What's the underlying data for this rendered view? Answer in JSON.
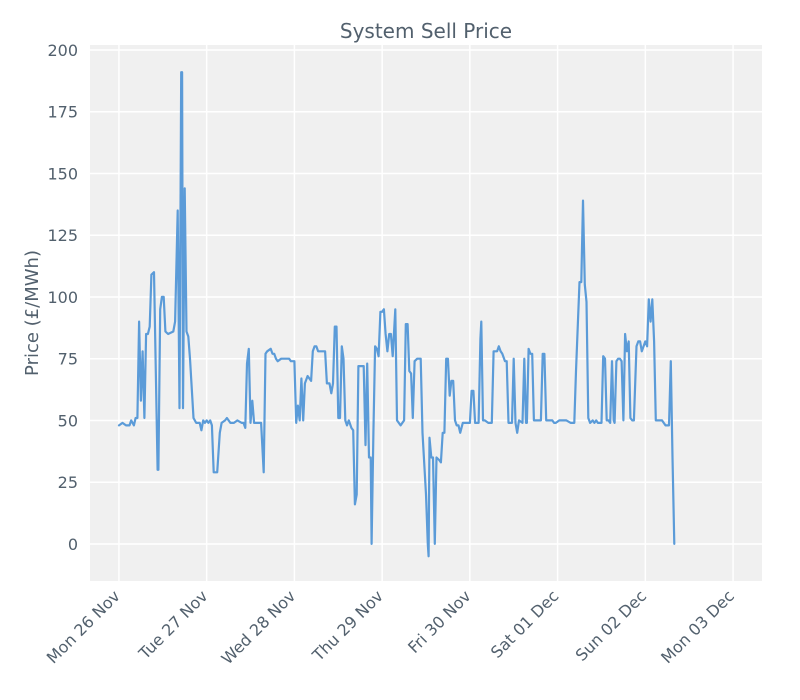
{
  "chart_data": {
    "type": "line",
    "title": "System Sell Price",
    "xlabel": "",
    "ylabel": "Price (£/MWh)",
    "ylim": [
      -15,
      202
    ],
    "xlim": [
      -0.33,
      7.33
    ],
    "yticks": [
      0,
      25,
      50,
      75,
      100,
      125,
      150,
      175,
      200
    ],
    "xticks": [
      "Mon 26 Nov",
      "Tue 27 Nov",
      "Wed 28 Nov",
      "Thu 29 Nov",
      "Fri 30 Nov",
      "Sat 01 Dec",
      "Sun 02 Dec",
      "Mon 03 Dec"
    ],
    "grid": true,
    "x_unit": "days since Mon 26 Nov 00:00 (30-minute settlement periods)",
    "series": [
      {
        "name": "System Sell Price",
        "color": "#5b9bd8",
        "points": [
          [
            0.0,
            48
          ],
          [
            0.04,
            49
          ],
          [
            0.08,
            48
          ],
          [
            0.12,
            48
          ],
          [
            0.14,
            50
          ],
          [
            0.17,
            48
          ],
          [
            0.19,
            51
          ],
          [
            0.21,
            51
          ],
          [
            0.23,
            90
          ],
          [
            0.25,
            58
          ],
          [
            0.27,
            78
          ],
          [
            0.29,
            51
          ],
          [
            0.31,
            85
          ],
          [
            0.33,
            85
          ],
          [
            0.35,
            88
          ],
          [
            0.37,
            109
          ],
          [
            0.4,
            110
          ],
          [
            0.42,
            70
          ],
          [
            0.44,
            30
          ],
          [
            0.45,
            30
          ],
          [
            0.47,
            95
          ],
          [
            0.49,
            100
          ],
          [
            0.51,
            100
          ],
          [
            0.53,
            86
          ],
          [
            0.56,
            85
          ],
          [
            0.62,
            86
          ],
          [
            0.64,
            90
          ],
          [
            0.67,
            135
          ],
          [
            0.69,
            55
          ],
          [
            0.71,
            191
          ],
          [
            0.72,
            191
          ],
          [
            0.73,
            55
          ],
          [
            0.75,
            144
          ],
          [
            0.77,
            86
          ],
          [
            0.79,
            84
          ],
          [
            0.81,
            75
          ],
          [
            0.85,
            51
          ],
          [
            0.88,
            49
          ],
          [
            0.92,
            49
          ],
          [
            0.94,
            46
          ],
          [
            0.96,
            50
          ],
          [
            0.98,
            49
          ],
          [
            1.0,
            50
          ],
          [
            1.02,
            49
          ],
          [
            1.04,
            50
          ],
          [
            1.06,
            48
          ],
          [
            1.08,
            29
          ],
          [
            1.12,
            29
          ],
          [
            1.15,
            45
          ],
          [
            1.17,
            49
          ],
          [
            1.21,
            50
          ],
          [
            1.23,
            51
          ],
          [
            1.27,
            49
          ],
          [
            1.31,
            49
          ],
          [
            1.35,
            50
          ],
          [
            1.4,
            49
          ],
          [
            1.42,
            49
          ],
          [
            1.44,
            47
          ],
          [
            1.46,
            73
          ],
          [
            1.48,
            79
          ],
          [
            1.5,
            49
          ],
          [
            1.52,
            58
          ],
          [
            1.54,
            49
          ],
          [
            1.56,
            49
          ],
          [
            1.58,
            49
          ],
          [
            1.6,
            49
          ],
          [
            1.62,
            49
          ],
          [
            1.65,
            29
          ],
          [
            1.67,
            77
          ],
          [
            1.69,
            78
          ],
          [
            1.73,
            79
          ],
          [
            1.75,
            77
          ],
          [
            1.77,
            77
          ],
          [
            1.79,
            75
          ],
          [
            1.81,
            74
          ],
          [
            1.85,
            75
          ],
          [
            1.94,
            75
          ],
          [
            1.96,
            74
          ],
          [
            2.0,
            74
          ],
          [
            2.02,
            49
          ],
          [
            2.04,
            56
          ],
          [
            2.06,
            50
          ],
          [
            2.08,
            67
          ],
          [
            2.1,
            50
          ],
          [
            2.12,
            65
          ],
          [
            2.15,
            68
          ],
          [
            2.19,
            66
          ],
          [
            2.21,
            78
          ],
          [
            2.23,
            80
          ],
          [
            2.25,
            80
          ],
          [
            2.27,
            78
          ],
          [
            2.31,
            78
          ],
          [
            2.35,
            78
          ],
          [
            2.37,
            65
          ],
          [
            2.4,
            65
          ],
          [
            2.42,
            61
          ],
          [
            2.44,
            65
          ],
          [
            2.46,
            88
          ],
          [
            2.48,
            88
          ],
          [
            2.5,
            51
          ],
          [
            2.52,
            51
          ],
          [
            2.54,
            80
          ],
          [
            2.56,
            75
          ],
          [
            2.58,
            50
          ],
          [
            2.6,
            48
          ],
          [
            2.62,
            50
          ],
          [
            2.65,
            47
          ],
          [
            2.67,
            46
          ],
          [
            2.69,
            16
          ],
          [
            2.71,
            20
          ],
          [
            2.73,
            72
          ],
          [
            2.75,
            72
          ],
          [
            2.79,
            72
          ],
          [
            2.81,
            40
          ],
          [
            2.83,
            73
          ],
          [
            2.85,
            35
          ],
          [
            2.87,
            35
          ],
          [
            2.88,
            0
          ],
          [
            2.9,
            45
          ],
          [
            2.92,
            80
          ],
          [
            2.94,
            79
          ],
          [
            2.96,
            76
          ],
          [
            2.98,
            94
          ],
          [
            3.0,
            94
          ],
          [
            3.02,
            95
          ],
          [
            3.04,
            85
          ],
          [
            3.06,
            78
          ],
          [
            3.08,
            85
          ],
          [
            3.1,
            85
          ],
          [
            3.12,
            76
          ],
          [
            3.15,
            95
          ],
          [
            3.17,
            50
          ],
          [
            3.19,
            49
          ],
          [
            3.21,
            48
          ],
          [
            3.25,
            50
          ],
          [
            3.27,
            89
          ],
          [
            3.29,
            89
          ],
          [
            3.31,
            70
          ],
          [
            3.33,
            69
          ],
          [
            3.35,
            51
          ],
          [
            3.37,
            74
          ],
          [
            3.4,
            75
          ],
          [
            3.44,
            75
          ],
          [
            3.46,
            45
          ],
          [
            3.5,
            20
          ],
          [
            3.52,
            0
          ],
          [
            3.53,
            -5
          ],
          [
            3.54,
            43
          ],
          [
            3.56,
            35
          ],
          [
            3.58,
            35
          ],
          [
            3.6,
            0
          ],
          [
            3.62,
            35
          ],
          [
            3.65,
            34
          ],
          [
            3.67,
            33
          ],
          [
            3.69,
            45
          ],
          [
            3.71,
            45
          ],
          [
            3.73,
            75
          ],
          [
            3.75,
            75
          ],
          [
            3.77,
            60
          ],
          [
            3.79,
            66
          ],
          [
            3.81,
            66
          ],
          [
            3.83,
            50
          ],
          [
            3.85,
            48
          ],
          [
            3.87,
            48
          ],
          [
            3.89,
            45
          ],
          [
            3.92,
            49
          ],
          [
            3.96,
            49
          ],
          [
            4.0,
            49
          ],
          [
            4.02,
            62
          ],
          [
            4.04,
            62
          ],
          [
            4.06,
            49
          ],
          [
            4.08,
            49
          ],
          [
            4.1,
            49
          ],
          [
            4.12,
            83
          ],
          [
            4.13,
            90
          ],
          [
            4.15,
            50
          ],
          [
            4.17,
            50
          ],
          [
            4.21,
            49
          ],
          [
            4.25,
            49
          ],
          [
            4.27,
            78
          ],
          [
            4.31,
            78
          ],
          [
            4.33,
            80
          ],
          [
            4.35,
            78
          ],
          [
            4.37,
            77
          ],
          [
            4.4,
            74
          ],
          [
            4.42,
            74
          ],
          [
            4.44,
            49
          ],
          [
            4.48,
            49
          ],
          [
            4.5,
            75
          ],
          [
            4.52,
            49
          ],
          [
            4.54,
            45
          ],
          [
            4.56,
            50
          ],
          [
            4.6,
            49
          ],
          [
            4.62,
            75
          ],
          [
            4.64,
            49
          ],
          [
            4.65,
            49
          ],
          [
            4.67,
            79
          ],
          [
            4.69,
            77
          ],
          [
            4.71,
            77
          ],
          [
            4.73,
            50
          ],
          [
            4.77,
            50
          ],
          [
            4.81,
            50
          ],
          [
            4.83,
            77
          ],
          [
            4.85,
            77
          ],
          [
            4.87,
            50
          ],
          [
            4.9,
            50
          ],
          [
            4.92,
            50
          ],
          [
            4.94,
            50
          ],
          [
            4.96,
            49
          ],
          [
            4.98,
            49
          ],
          [
            5.02,
            50
          ],
          [
            5.06,
            50
          ],
          [
            5.1,
            50
          ],
          [
            5.15,
            49
          ],
          [
            5.19,
            49
          ],
          [
            5.21,
            70
          ],
          [
            5.25,
            106
          ],
          [
            5.27,
            106
          ],
          [
            5.29,
            139
          ],
          [
            5.31,
            105
          ],
          [
            5.33,
            98
          ],
          [
            5.35,
            51
          ],
          [
            5.37,
            49
          ],
          [
            5.4,
            50
          ],
          [
            5.42,
            49
          ],
          [
            5.44,
            50
          ],
          [
            5.46,
            49
          ],
          [
            5.48,
            49
          ],
          [
            5.5,
            49
          ],
          [
            5.52,
            76
          ],
          [
            5.54,
            75
          ],
          [
            5.56,
            50
          ],
          [
            5.58,
            50
          ],
          [
            5.6,
            49
          ],
          [
            5.62,
            74
          ],
          [
            5.64,
            50
          ],
          [
            5.65,
            49
          ],
          [
            5.67,
            74
          ],
          [
            5.69,
            75
          ],
          [
            5.71,
            75
          ],
          [
            5.73,
            74
          ],
          [
            5.75,
            50
          ],
          [
            5.77,
            85
          ],
          [
            5.79,
            78
          ],
          [
            5.81,
            82
          ],
          [
            5.83,
            51
          ],
          [
            5.85,
            50
          ],
          [
            5.87,
            50
          ],
          [
            5.9,
            80
          ],
          [
            5.92,
            82
          ],
          [
            5.94,
            82
          ],
          [
            5.96,
            78
          ],
          [
            5.98,
            80
          ],
          [
            6.0,
            82
          ],
          [
            6.02,
            80
          ],
          [
            6.04,
            99
          ],
          [
            6.06,
            90
          ],
          [
            6.08,
            99
          ],
          [
            6.1,
            82
          ],
          [
            6.12,
            50
          ],
          [
            6.15,
            50
          ],
          [
            6.19,
            50
          ],
          [
            6.23,
            48
          ],
          [
            6.25,
            48
          ],
          [
            6.27,
            48
          ],
          [
            6.29,
            74
          ],
          [
            6.31,
            35
          ],
          [
            6.33,
            0
          ]
        ]
      }
    ]
  }
}
